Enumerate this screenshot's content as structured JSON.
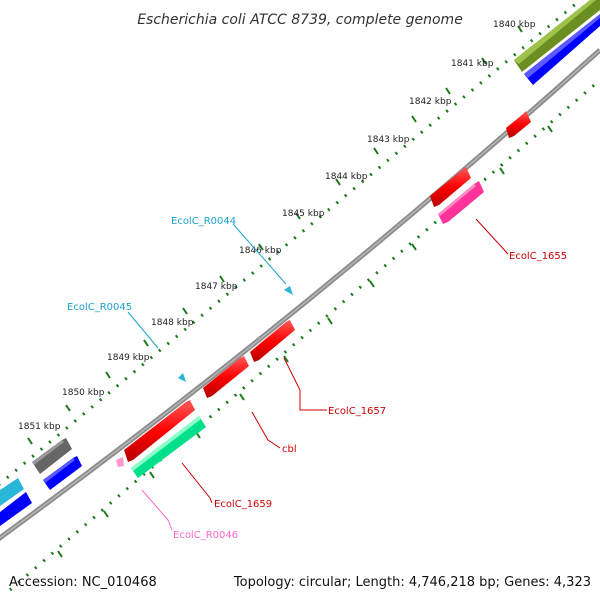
{
  "title": "Escherichia coli ATCC 8739, complete genome",
  "footer": {
    "accession": "Accession: NC_010468",
    "topology": "Topology: circular; Length: 4,746,218 bp; Genes: 4,323"
  },
  "kbp_labels": [
    "1840 kbp",
    "1841 kbp",
    "1842 kbp",
    "1843 kbp",
    "1844 kbp",
    "1845 kbp",
    "1846 kbp",
    "1847 kbp",
    "1848 kbp",
    "1849 kbp",
    "1850 kbp",
    "1851 kbp"
  ],
  "feature_labels": {
    "ecolc_r0044": "EcolC_R0044",
    "ecolc_r0045": "EcolC_R0045",
    "ecolc_1655": "EcolC_1655",
    "ecolc_1657": "EcolC_1657",
    "cbl": "cbl",
    "ecolc_1659": "EcolC_1659",
    "ecolc_r0046": "EcolC_R0046"
  },
  "colors": {
    "backbone": "#8c8c8c",
    "ticks": "#1a7a1a",
    "cds": "#ff0000",
    "blast_dark": "#6b8e23",
    "blast_blue": "#0000ff",
    "rrna_pink": "#ff3399",
    "trna_cyan": "#29b6d8",
    "misc_green": "#00e08a",
    "gray_feature": "#666666",
    "pink_small": "#ff99cc",
    "label_red": "#cc0000",
    "label_cyan": "#1aa3cc",
    "label_pink": "#ff66cc"
  }
}
